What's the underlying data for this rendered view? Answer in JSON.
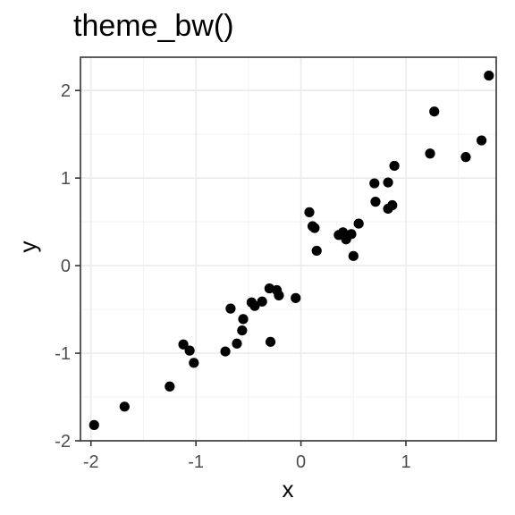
{
  "chart_data": {
    "type": "scatter",
    "title": "theme_bw()",
    "xlabel": "x",
    "ylabel": "y",
    "xlim": [
      -2.1,
      1.86
    ],
    "ylim": [
      -2.0,
      2.38
    ],
    "x_ticks": [
      -2,
      -1,
      0,
      1
    ],
    "x_tick_labels": [
      "-2",
      "-1",
      "0",
      "1"
    ],
    "y_ticks": [
      -2,
      -1,
      0,
      1,
      2
    ],
    "y_tick_labels": [
      "-2",
      "-1",
      "0",
      "1",
      "2"
    ],
    "x_minor_ticks": [
      -1.5,
      -0.5,
      0.5,
      1.5
    ],
    "y_minor_ticks": [
      -1.5,
      -0.5,
      0.5,
      1.5
    ],
    "grid": true,
    "point_color": "#000000",
    "points": [
      {
        "x": -1.97,
        "y": -1.82
      },
      {
        "x": -1.68,
        "y": -1.61
      },
      {
        "x": -1.25,
        "y": -1.38
      },
      {
        "x": -1.12,
        "y": -0.9
      },
      {
        "x": -1.06,
        "y": -0.97
      },
      {
        "x": -1.02,
        "y": -1.11
      },
      {
        "x": -0.72,
        "y": -0.98
      },
      {
        "x": -0.67,
        "y": -0.49
      },
      {
        "x": -0.61,
        "y": -0.89
      },
      {
        "x": -0.56,
        "y": -0.74
      },
      {
        "x": -0.55,
        "y": -0.61
      },
      {
        "x": -0.47,
        "y": -0.42
      },
      {
        "x": -0.44,
        "y": -0.46
      },
      {
        "x": -0.37,
        "y": -0.41
      },
      {
        "x": -0.3,
        "y": -0.26
      },
      {
        "x": -0.29,
        "y": -0.87
      },
      {
        "x": -0.23,
        "y": -0.28
      },
      {
        "x": -0.21,
        "y": -0.34
      },
      {
        "x": -0.05,
        "y": -0.37
      },
      {
        "x": 0.08,
        "y": 0.61
      },
      {
        "x": 0.11,
        "y": 0.45
      },
      {
        "x": 0.13,
        "y": 0.43
      },
      {
        "x": 0.15,
        "y": 0.17
      },
      {
        "x": 0.36,
        "y": 0.35
      },
      {
        "x": 0.4,
        "y": 0.38
      },
      {
        "x": 0.43,
        "y": 0.3
      },
      {
        "x": 0.44,
        "y": 0.34
      },
      {
        "x": 0.48,
        "y": 0.36
      },
      {
        "x": 0.5,
        "y": 0.11
      },
      {
        "x": 0.55,
        "y": 0.48
      },
      {
        "x": 0.7,
        "y": 0.94
      },
      {
        "x": 0.71,
        "y": 0.73
      },
      {
        "x": 0.83,
        "y": 0.95
      },
      {
        "x": 0.83,
        "y": 0.65
      },
      {
        "x": 0.87,
        "y": 0.69
      },
      {
        "x": 0.89,
        "y": 1.14
      },
      {
        "x": 1.23,
        "y": 1.28
      },
      {
        "x": 1.27,
        "y": 1.76
      },
      {
        "x": 1.57,
        "y": 1.24
      },
      {
        "x": 1.72,
        "y": 1.43
      },
      {
        "x": 1.79,
        "y": 2.17
      }
    ]
  }
}
